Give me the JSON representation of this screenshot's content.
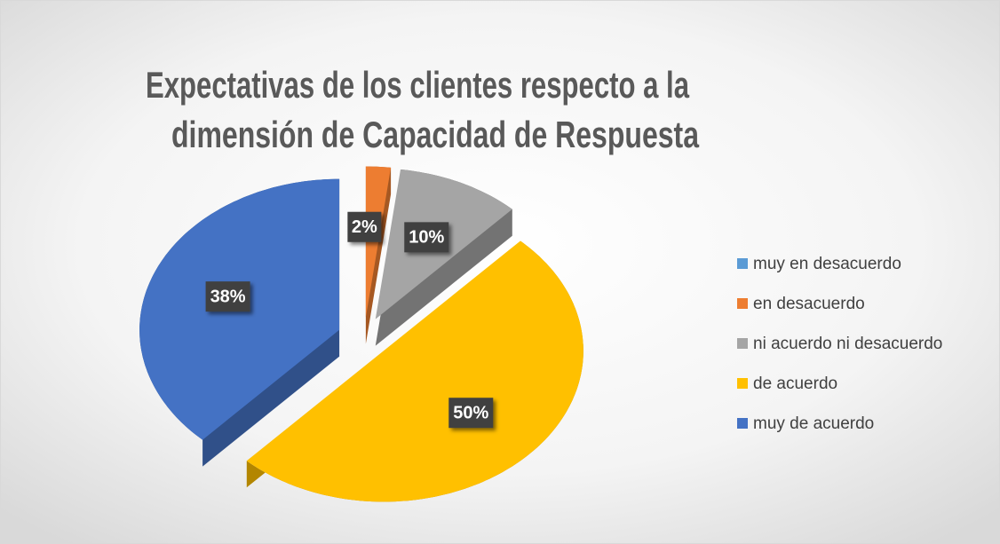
{
  "chart_data": {
    "type": "pie",
    "title": [
      "Expectativas de los clientes respecto a la",
      "dimensión de Capacidad de Respuesta"
    ],
    "categories": [
      "muy en desacuerdo",
      "en desacuerdo",
      "ni acuerdo ni desacuerdo",
      "de acuerdo",
      "muy de acuerdo"
    ],
    "values": [
      0,
      2,
      10,
      50,
      38
    ],
    "value_labels": [
      null,
      "2%",
      "10%",
      "50%",
      "38%"
    ],
    "colors": [
      "#5b9bd5",
      "#ed7d31",
      "#a5a5a5",
      "#ffc000",
      "#4472c4"
    ],
    "legend": "right"
  }
}
